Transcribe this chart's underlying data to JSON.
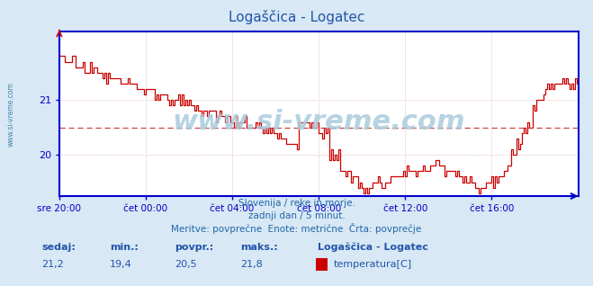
{
  "title": "Logaščica - Logatec",
  "title_color": "#2255aa",
  "bg_color": "#d8e8f4",
  "plot_bg_color": "#ffffff",
  "line_color": "#cc0000",
  "avg_line_color": "#cc4444",
  "grid_color": "#ddaaaa",
  "axis_color": "#0000cc",
  "tick_color": "#2266aa",
  "watermark": "www.si-vreme.com",
  "watermark_color": "#aaccdd",
  "subtitle_lines": [
    "Slovenija / reke in morje.",
    "zadnji dan / 5 minut.",
    "Meritve: povprečne  Enote: metrične  Črta: povprečje"
  ],
  "legend_title": "Logaščica - Logatec",
  "legend_label": "temperatura[C]",
  "legend_color": "#cc0000",
  "stat_labels": [
    "sedaj:",
    "min.:",
    "povpr.:",
    "maks.:"
  ],
  "stat_values": [
    "21,2",
    "19,4",
    "20,5",
    "21,8"
  ],
  "stat_label_color": "#2255aa",
  "stat_value_color": "#2255aa",
  "x_tick_labels": [
    "sre 20:00",
    "čet 00:00",
    "čet 04:00",
    "čet 08:00",
    "čet 12:00",
    "čet 16:00"
  ],
  "x_tick_positions": [
    0,
    48,
    96,
    144,
    192,
    240
  ],
  "ylim": [
    19.25,
    22.25
  ],
  "yticks": [
    20,
    21
  ],
  "avg_value": 20.5,
  "n_points": 289,
  "sidebar_text": "www.si-vreme.com",
  "sidebar_color": "#4488aa"
}
